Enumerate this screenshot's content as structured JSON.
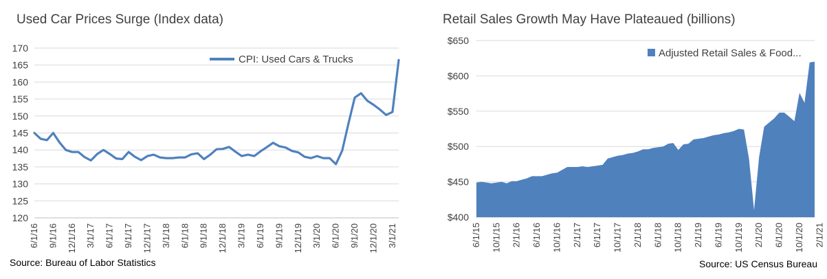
{
  "colors": {
    "series": "#4f81bd",
    "grid": "#d9d9d9",
    "text": "#404040"
  },
  "left": {
    "title": "Used Car Prices Surge (Index data)",
    "source": "Source: Bureau of Labor Statistics",
    "legend": "CPI: Used Cars & Trucks",
    "chart_data": {
      "type": "line",
      "title": "Used Car Prices Surge (Index data)",
      "ylim": [
        120,
        170
      ],
      "yticks": [
        "120",
        "125",
        "130",
        "135",
        "140",
        "145",
        "150",
        "155",
        "160",
        "165",
        "170"
      ],
      "xtick_labels": [
        "6/1/16",
        "9/1/16",
        "12/1/16",
        "3/1/17",
        "6/1/17",
        "9/1/17",
        "12/1/17",
        "3/1/18",
        "6/1/18",
        "9/1/18",
        "12/1/18",
        "3/1/19",
        "6/1/19",
        "9/1/19",
        "12/1/19",
        "3/1/20",
        "6/1/20",
        "9/1/20",
        "12/1/20",
        "3/1/21"
      ],
      "grid": "horizontal",
      "legend_position": "top-right",
      "series": [
        {
          "name": "CPI: Used Cars & Trucks",
          "values": [
            145.0,
            143.3,
            142.9,
            145.0,
            142.2,
            140.0,
            139.4,
            139.4,
            137.9,
            136.9,
            138.8,
            140.0,
            138.8,
            137.5,
            137.3,
            139.4,
            138.0,
            137.0,
            138.2,
            138.6,
            137.8,
            137.6,
            137.6,
            137.8,
            137.8,
            138.7,
            139.0,
            137.3,
            138.6,
            140.2,
            140.3,
            140.9,
            139.5,
            138.2,
            138.6,
            138.2,
            139.6,
            140.8,
            142.1,
            141.1,
            140.7,
            139.7,
            139.3,
            138.0,
            137.6,
            138.2,
            137.6,
            137.6,
            135.8,
            139.8,
            147.8,
            155.4,
            156.7,
            154.5,
            153.3,
            151.9,
            150.3,
            151.2,
            166.5
          ]
        }
      ]
    }
  },
  "right": {
    "title": "Retail Sales Growth May Have Plateaued (billions)",
    "source": "Source: US Census Bureau",
    "legend": "Adjusted Retail Sales & Food...",
    "chart_data": {
      "type": "area",
      "title": "Retail Sales Growth May Have Plateaued (billions)",
      "ylim": [
        400,
        650
      ],
      "yticks": [
        "$400",
        "$450",
        "$500",
        "$550",
        "$600",
        "$650"
      ],
      "xtick_labels": [
        "6/1/15",
        "10/1/15",
        "2/1/16",
        "6/1/16",
        "10/1/16",
        "2/1/17",
        "6/1/17",
        "10/1/17",
        "2/1/18",
        "6/1/18",
        "10/1/18",
        "2/1/19",
        "6/1/19",
        "10/1/19",
        "2/1/20",
        "6/1/20",
        "10/1/20",
        "2/1/21"
      ],
      "grid": "horizontal",
      "legend_position": "top-right",
      "series": [
        {
          "name": "Adjusted Retail Sales & Food...",
          "values": [
            449,
            450,
            449,
            448,
            449,
            450,
            448,
            451,
            451,
            453,
            455,
            458,
            458,
            458,
            460,
            462,
            463,
            467,
            471,
            471,
            471,
            472,
            471,
            472,
            473,
            474,
            483,
            485,
            487,
            488,
            490,
            491,
            493,
            496,
            496,
            498,
            499,
            500,
            504,
            505,
            495,
            503,
            504,
            510,
            511,
            512,
            514,
            516,
            517,
            519,
            520,
            522,
            525,
            524,
            483,
            410,
            485,
            528,
            534,
            540,
            548,
            548,
            542,
            536,
            576,
            562,
            619,
            620
          ]
        }
      ]
    }
  }
}
